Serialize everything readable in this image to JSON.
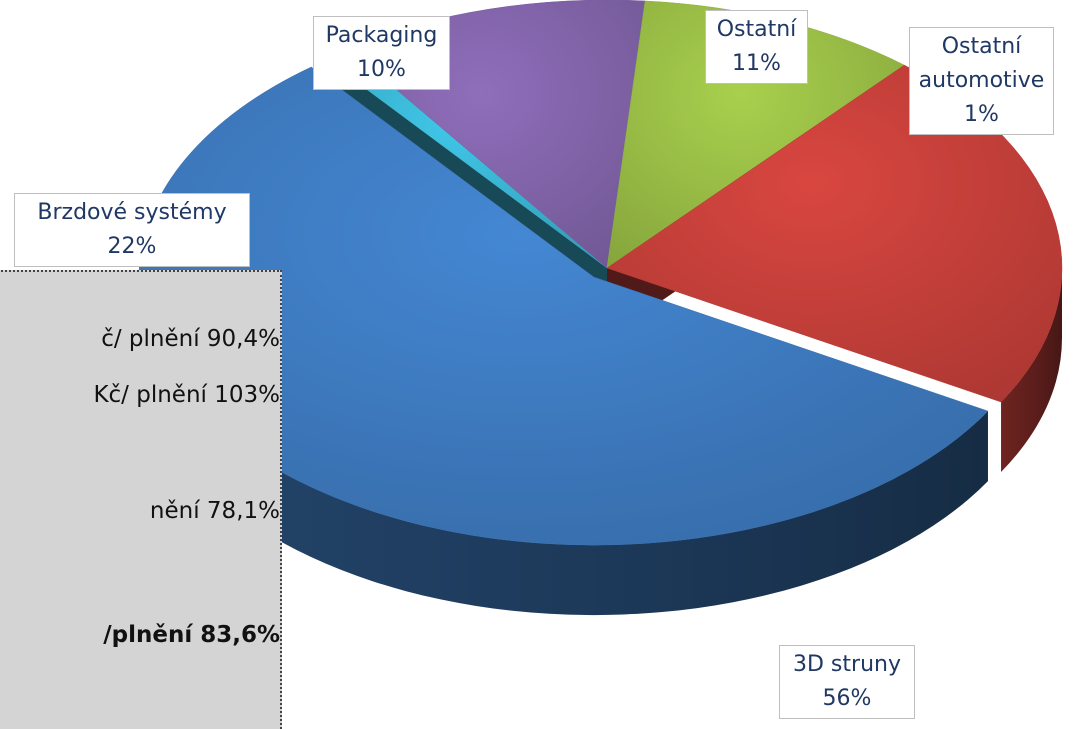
{
  "chart_data": {
    "type": "pie",
    "title": "",
    "slices": [
      {
        "label_lines": [
          "3D struny"
        ],
        "pct_label": "56%",
        "value": 56,
        "color": "#3f7dc3"
      },
      {
        "label_lines": [
          "Ostatní",
          "automotive"
        ],
        "pct_label": "1%",
        "value": 1,
        "color": "#3bb7d6"
      },
      {
        "label_lines": [
          "Ostatní"
        ],
        "pct_label": "11%",
        "value": 11,
        "color": "#8466ad"
      },
      {
        "label_lines": [
          "Packaging"
        ],
        "pct_label": "10%",
        "value": 10,
        "color": "#9cc147"
      },
      {
        "label_lines": [
          "Brzdové systémy"
        ],
        "pct_label": "22%",
        "value": 22,
        "color": "#c9413b"
      }
    ]
  },
  "overlay": {
    "lines": [
      {
        "text": "č/ plnění 90,4%",
        "bold": false
      },
      {
        "text": "Kč/ plnění 103%",
        "bold": false
      },
      {
        "text": "nění 78,1%",
        "bold": false
      },
      {
        "text": "/plnění 83,6%",
        "bold": true
      }
    ]
  }
}
